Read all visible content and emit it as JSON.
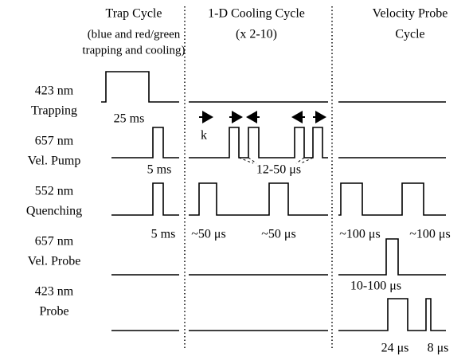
{
  "columns": [
    {
      "title": "Trap Cycle",
      "subtitle": [
        "(blue and red/green",
        "trapping and cooling)"
      ]
    },
    {
      "title": "1-D Cooling Cycle",
      "subtitle": [
        "(x 2-10)"
      ]
    },
    {
      "title": "Velocity Probe",
      "subtitle": [
        "Cycle"
      ]
    }
  ],
  "rows": [
    {
      "label": [
        "423 nm",
        "Trapping"
      ]
    },
    {
      "label": [
        "657 nm",
        "Vel. Pump"
      ]
    },
    {
      "label": [
        "552 nm",
        "Quenching"
      ]
    },
    {
      "label": [
        "657 nm",
        "Vel. Probe"
      ]
    },
    {
      "label": [
        "423 nm",
        "Probe"
      ]
    }
  ],
  "annotations": [
    "25 ms",
    "k",
    "5 ms",
    "12-50 μs",
    "5 ms",
    "~50 μs",
    "~50 μs",
    "~100 μs",
    "~100 μs",
    "10-100 μs",
    "24 μs",
    "8 μs"
  ]
}
